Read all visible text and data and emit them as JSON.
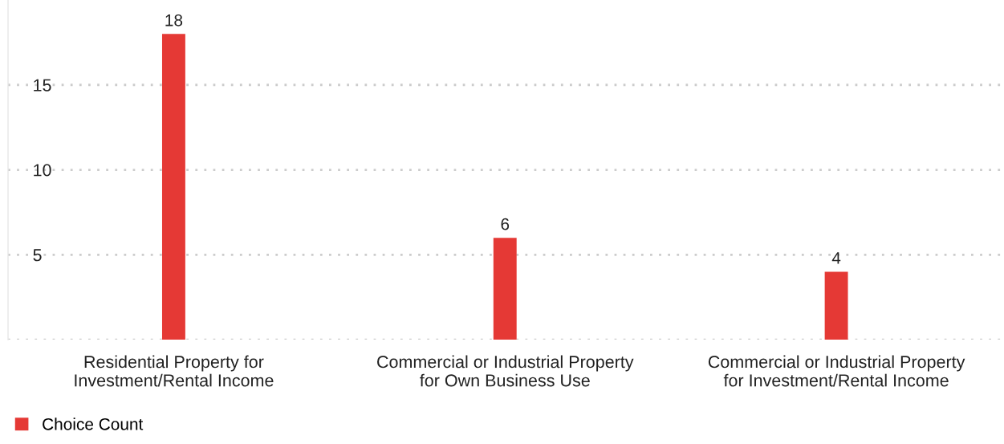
{
  "chart_data": {
    "type": "bar",
    "categories": [
      "Residential Property for\nInvestment/Rental Income",
      "Commercial or Industrial Property\nfor Own Business Use",
      "Commercial or Industrial Property\nfor Investment/Rental Income"
    ],
    "series": [
      {
        "name": "Choice Count",
        "color": "#e53935",
        "values": [
          18,
          6,
          4
        ]
      }
    ],
    "ylim": [
      0,
      20
    ],
    "yticks": [
      {
        "value": 0,
        "label": null
      },
      5,
      10,
      15
    ],
    "grid": "y",
    "legend": "bottom left",
    "data_labels": true
  }
}
